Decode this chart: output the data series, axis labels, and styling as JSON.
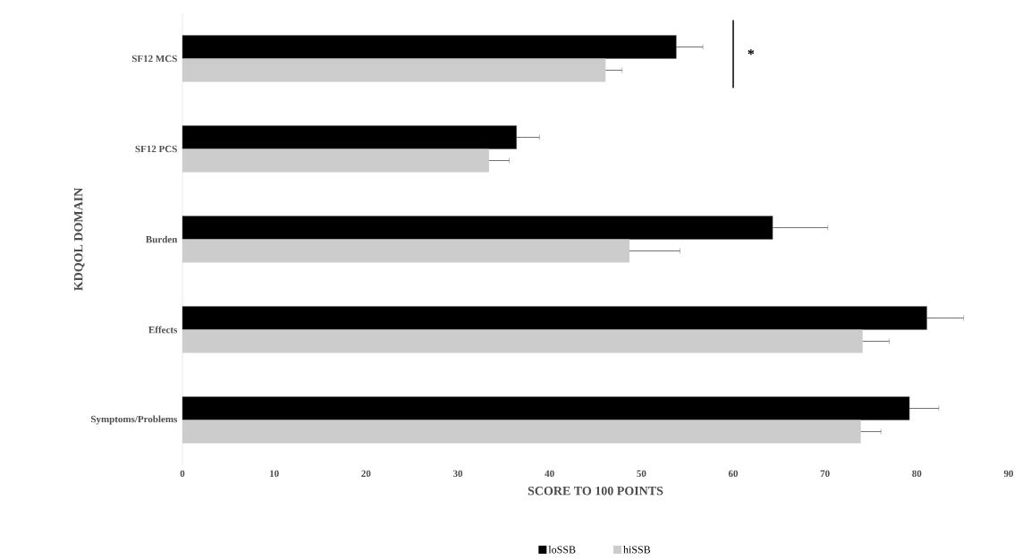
{
  "chart_data": {
    "type": "bar",
    "orientation": "horizontal",
    "xlabel": "SCORE TO 100 POINTS",
    "ylabel": "KDQOL DOMAIN",
    "categories": [
      "SF12 MCS",
      "SF12 PCS",
      "Burden",
      "Effects",
      "Symptoms/Problems"
    ],
    "series": [
      {
        "name": "loSSB",
        "color": "#000000",
        "values": [
          53.8,
          36.4,
          64.3,
          81.1,
          79.2
        ],
        "errors": [
          2.9,
          2.5,
          6.0,
          4.0,
          3.2
        ]
      },
      {
        "name": "hiSSB",
        "color": "#cccccc",
        "values": [
          46.1,
          33.4,
          48.7,
          74.1,
          73.9
        ],
        "errors": [
          1.8,
          2.2,
          5.5,
          2.9,
          2.2
        ]
      }
    ],
    "xlim": [
      0,
      90
    ],
    "xticks": [
      0,
      10,
      20,
      30,
      40,
      50,
      60,
      70,
      80,
      90
    ],
    "grid": false,
    "legend": "bottom",
    "annotations": [
      "*"
    ]
  }
}
